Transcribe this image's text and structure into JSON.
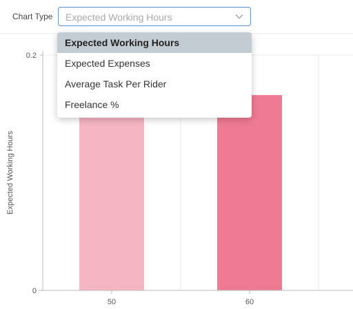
{
  "controls": {
    "chart_type_label": "Chart Type",
    "select_value": "Expected Working Hours",
    "options": [
      "Expected Working Hours",
      "Expected Expenses",
      "Average Task Per Rider",
      "Freelance %"
    ],
    "selected_index": 0
  },
  "chart_data": {
    "type": "bar",
    "categories": [
      "50",
      "60"
    ],
    "values": [
      0.15,
      0.166
    ],
    "colors": [
      "#f6b5c3",
      "#ef7a93"
    ],
    "ylabel": "Expected Working Hours",
    "ylim": [
      0,
      0.2
    ],
    "y_ticks": [
      "0",
      "0.2"
    ],
    "grid": true
  }
}
